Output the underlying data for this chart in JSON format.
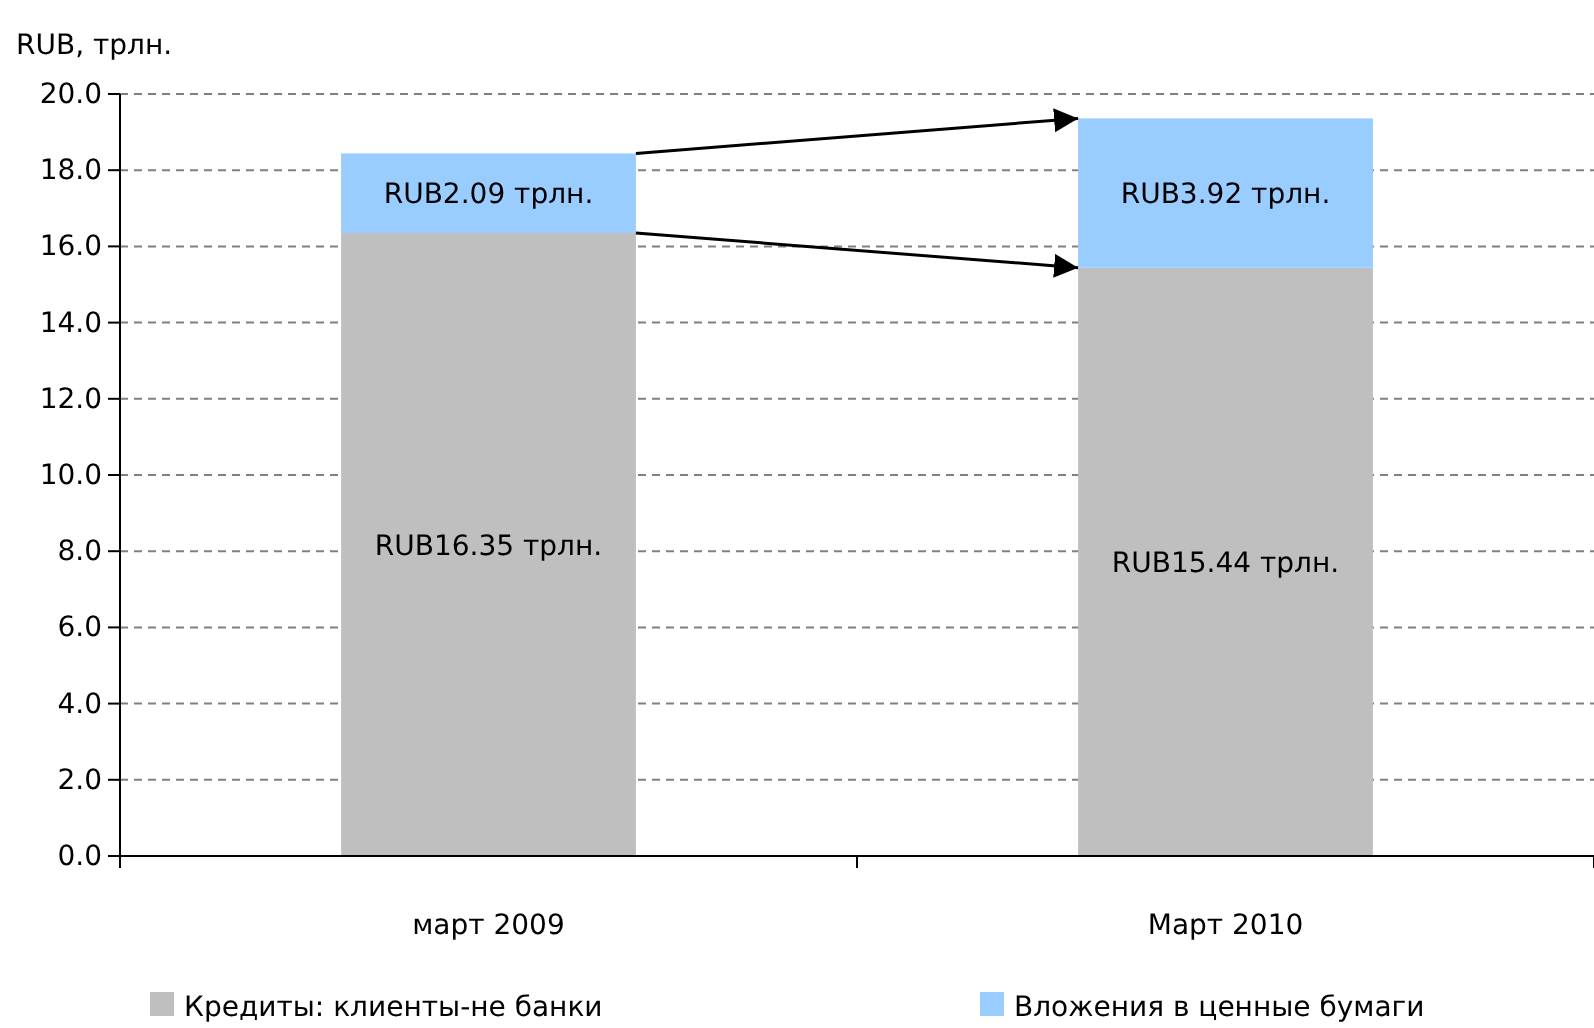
{
  "chart_data": {
    "type": "bar",
    "stacked": true,
    "ylabel": "RUB, трлн.",
    "categories": [
      "март 2009",
      "Март 2010"
    ],
    "series": [
      {
        "name": "Кредиты: клиенты-не банки",
        "color": "#bfbfbf",
        "values": [
          16.35,
          15.44
        ],
        "value_labels": [
          "RUB16.35 трлн.",
          "RUB15.44 трлн."
        ]
      },
      {
        "name": "Вложения в ценные бумаги",
        "color": "#99ccff",
        "values": [
          2.09,
          3.92
        ],
        "value_labels": [
          "RUB2.09 трлн.",
          "RUB3.92 трлн."
        ]
      }
    ],
    "ylim": [
      0,
      20
    ],
    "yticks": [
      {
        "value": 0,
        "label": "0.0"
      },
      {
        "value": 2,
        "label": "2.0"
      },
      {
        "value": 4,
        "label": "4.0"
      },
      {
        "value": 6,
        "label": "6.0"
      },
      {
        "value": 8,
        "label": "8.0"
      },
      {
        "value": 10,
        "label": "10.0"
      },
      {
        "value": 12,
        "label": "12.0"
      },
      {
        "value": 14,
        "label": "14.0"
      },
      {
        "value": 16,
        "label": "16.0"
      },
      {
        "value": 18,
        "label": "18.0"
      },
      {
        "value": 20,
        "label": "20.0"
      }
    ],
    "grid": "y",
    "legend": "bottom"
  }
}
